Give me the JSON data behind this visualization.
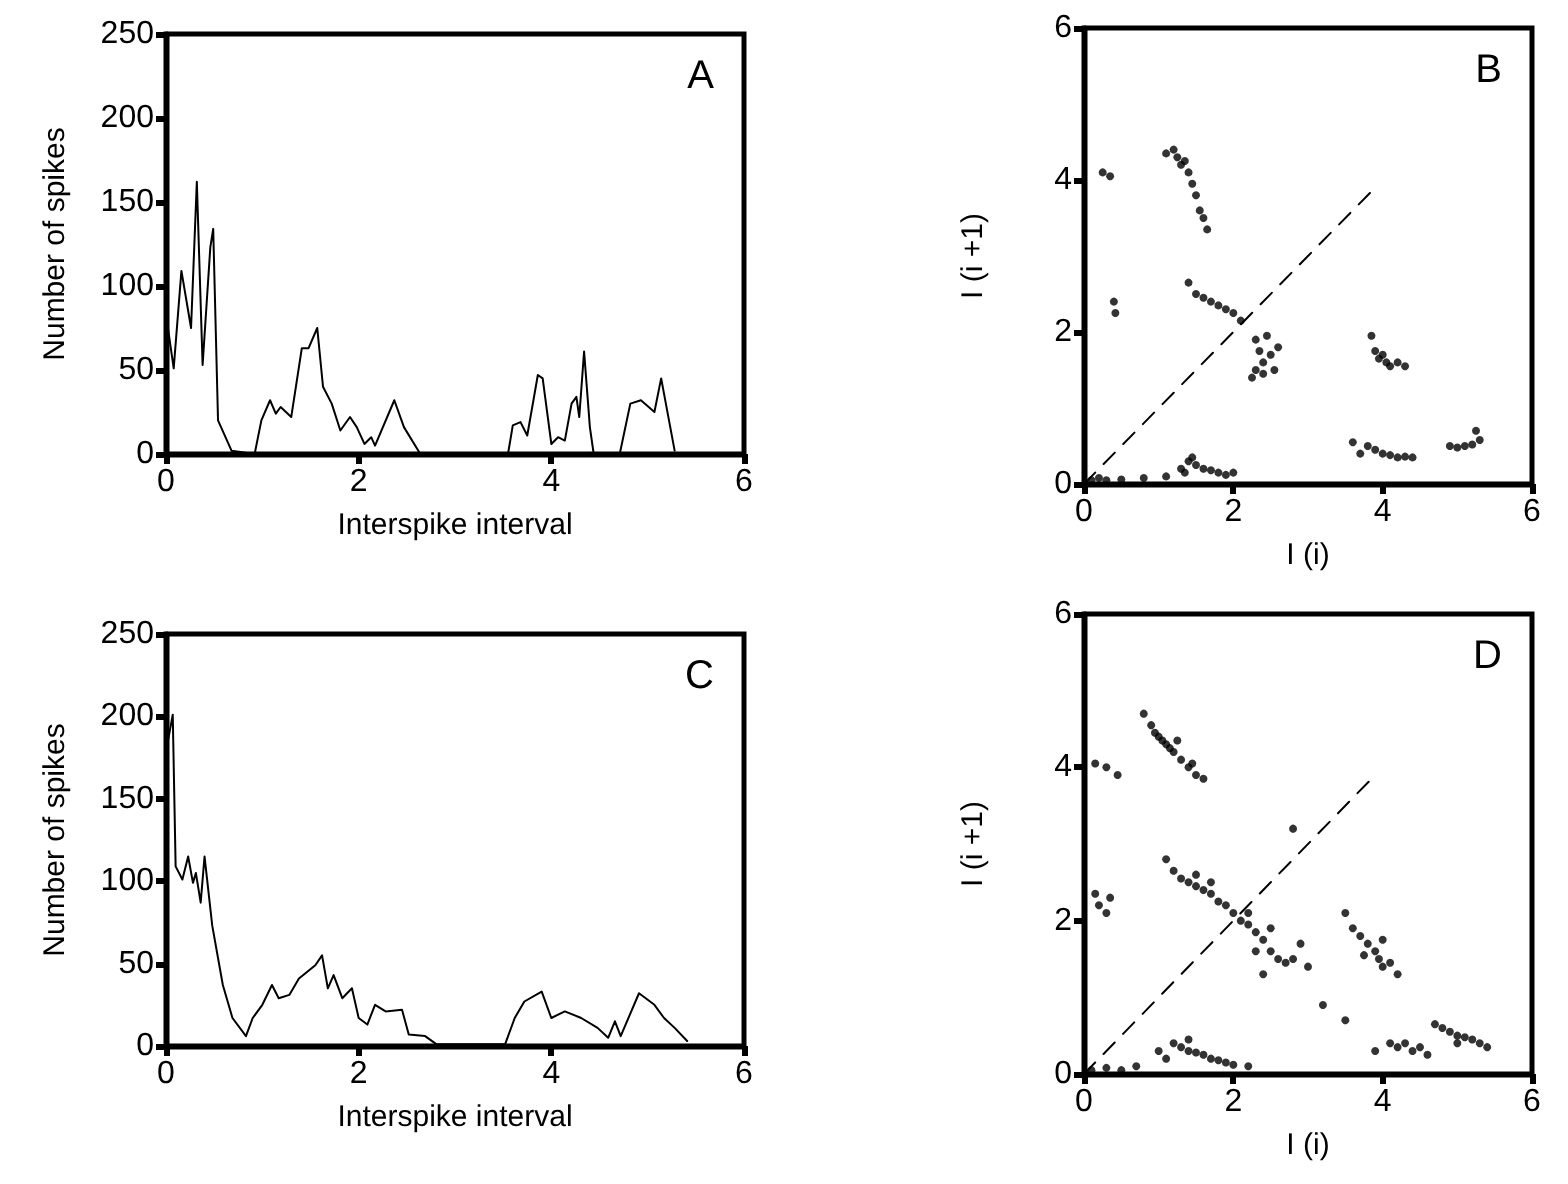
{
  "chart_data": [
    {
      "type": "line",
      "title": "A",
      "xlabel": "Interspike interval",
      "ylabel": "Number of spikes",
      "xlim": [
        0,
        6
      ],
      "ylim": [
        0,
        250
      ],
      "xticks": [
        0,
        2,
        4,
        6
      ],
      "yticks": [
        0,
        50,
        100,
        150,
        200,
        250
      ],
      "marker": "none",
      "grid": false,
      "series": [
        {
          "color": "#000000",
          "x": [
            0,
            0.08,
            0.16,
            0.26,
            0.32,
            0.38,
            0.46,
            0.49,
            0.54,
            0.68,
            0.92,
            0.99,
            1.08,
            1.14,
            1.19,
            1.3,
            1.41,
            1.48,
            1.57,
            1.63,
            1.72,
            1.81,
            1.91,
            1.98,
            2.06,
            2.13,
            2.17,
            2.37,
            2.47,
            2.64,
            3.55,
            3.6,
            3.68,
            3.75,
            3.86,
            3.91,
            4,
            4.07,
            4.14,
            4.21,
            4.26,
            4.29,
            4.34,
            4.4,
            4.44,
            4.71,
            4.82,
            4.93,
            5.07,
            5.14,
            5.28
          ],
          "values": [
            83,
            51,
            109,
            75,
            162,
            53,
            123,
            134,
            20,
            2,
            0,
            20,
            32,
            24,
            28,
            22,
            63,
            63,
            75,
            40,
            30,
            14,
            22,
            16,
            6,
            10,
            5,
            32,
            16,
            0,
            0,
            17,
            19,
            11,
            47,
            45,
            6,
            10,
            8,
            30,
            34,
            22,
            61,
            16,
            0,
            0,
            30,
            32,
            25,
            45,
            2
          ]
        }
      ]
    },
    {
      "type": "scatter",
      "title": "B",
      "xlabel": "I (i)",
      "ylabel": "I (i +1)",
      "xlim": [
        0,
        6
      ],
      "ylim": [
        0,
        6
      ],
      "xticks": [
        0,
        2,
        4,
        6
      ],
      "yticks": [
        0,
        2,
        4,
        6
      ],
      "marker": "circle",
      "grid": false,
      "series": [
        {
          "color": "#000000",
          "x": [
            1.1,
            1.2,
            1.25,
            1.3,
            1.35,
            1.4,
            1.45,
            1.5,
            1.55,
            1.6,
            1.65,
            0.25,
            0.35,
            0.4,
            0.42,
            1.4,
            1.5,
            1.6,
            1.7,
            1.8,
            1.9,
            2,
            2.1,
            2.3,
            2.35,
            2.4,
            2.3,
            2.25,
            2.5,
            2.55,
            2.45,
            2.6,
            2.4,
            3.85,
            3.9,
            4,
            4.05,
            4.1,
            4.2,
            4.3,
            3.95,
            3.6,
            3.8,
            3.9,
            4,
            4.1,
            4.2,
            4.3,
            4.4,
            3.7,
            4.9,
            5,
            5.1,
            5.2,
            5.3,
            5.25,
            0.1,
            0.2,
            0.3,
            0.5,
            0.8,
            1.1,
            1.3,
            1.4,
            1.45,
            1.5,
            1.6,
            1.7,
            1.8,
            1.9,
            2,
            1.35
          ],
          "values": [
            4.35,
            4.4,
            4.3,
            4.2,
            4.25,
            4.1,
            3.95,
            3.8,
            3.6,
            3.5,
            3.35,
            4.1,
            4.05,
            2.4,
            2.25,
            2.65,
            2.5,
            2.45,
            2.4,
            2.35,
            2.3,
            2.25,
            2.15,
            1.9,
            1.75,
            1.6,
            1.5,
            1.4,
            1.7,
            1.5,
            1.95,
            1.8,
            1.45,
            1.95,
            1.75,
            1.7,
            1.6,
            1.55,
            1.6,
            1.55,
            1.65,
            0.55,
            0.5,
            0.45,
            0.4,
            0.38,
            0.35,
            0.36,
            0.35,
            0.4,
            0.5,
            0.48,
            0.5,
            0.52,
            0.58,
            0.7,
            0.05,
            0.08,
            0.05,
            0.06,
            0.08,
            0.1,
            0.2,
            0.3,
            0.35,
            0.25,
            0.2,
            0.18,
            0.15,
            0.12,
            0.15,
            0.15
          ]
        },
        {
          "type": "line",
          "color": "#000000",
          "line_style": "dashed",
          "marker": "none",
          "x": [
            0,
            3.9
          ],
          "values": [
            0,
            3.9
          ]
        }
      ]
    },
    {
      "type": "line",
      "title": "C",
      "xlabel": "Interspike interval",
      "ylabel": "Number of spikes",
      "xlim": [
        0,
        6
      ],
      "ylim": [
        0,
        250
      ],
      "xticks": [
        0,
        2,
        4,
        6
      ],
      "yticks": [
        0,
        50,
        100,
        150,
        200,
        250
      ],
      "marker": "none",
      "grid": false,
      "series": [
        {
          "color": "#000000",
          "x": [
            0.02,
            0.07,
            0.1,
            0.17,
            0.23,
            0.28,
            0.31,
            0.36,
            0.4,
            0.48,
            0.59,
            0.69,
            0.83,
            0.9,
            1,
            1.1,
            1.17,
            1.28,
            1.38,
            1.55,
            1.62,
            1.68,
            1.74,
            1.83,
            1.93,
            2,
            2.09,
            2.17,
            2.28,
            2.45,
            2.52,
            2.69,
            2.81,
            3.52,
            3.62,
            3.72,
            3.9,
            4,
            4.14,
            4.31,
            4.48,
            4.59,
            4.66,
            4.72,
            4.91,
            5.07,
            5.17,
            5.28,
            5.41
          ],
          "values": [
            185,
            201,
            109,
            101,
            115,
            99,
            105,
            87,
            115,
            73,
            37,
            17,
            6,
            17,
            25,
            37,
            29,
            31,
            41,
            49,
            55,
            35,
            43,
            29,
            35,
            17,
            13,
            25,
            21,
            22,
            7,
            6,
            1,
            1,
            17,
            27,
            33,
            17,
            21,
            17,
            11,
            5,
            15,
            6,
            32,
            25,
            17,
            11,
            3
          ]
        }
      ]
    },
    {
      "type": "scatter",
      "title": "D",
      "xlabel": "I (i)",
      "ylabel": "I (i +1)",
      "xlim": [
        0,
        6
      ],
      "ylim": [
        0,
        6
      ],
      "xticks": [
        0,
        2,
        4,
        6
      ],
      "yticks": [
        0,
        2,
        4,
        6
      ],
      "marker": "circle",
      "grid": false,
      "series": [
        {
          "color": "#000000",
          "x": [
            0.8,
            0.9,
            1,
            1.05,
            1.1,
            1.15,
            1.2,
            1.3,
            1.4,
            1.5,
            1.6,
            0.95,
            1.25,
            1.45,
            0.15,
            0.3,
            0.45,
            0.2,
            0.3,
            0.35,
            0.15,
            1.1,
            1.2,
            1.3,
            1.4,
            1.5,
            1.6,
            1.7,
            1.8,
            1.9,
            2,
            2.1,
            2.2,
            2.3,
            2.4,
            2.5,
            2.6,
            2.7,
            2.8,
            2.4,
            2.3,
            2.5,
            1.5,
            1.7,
            2.2,
            2.9,
            3,
            3.5,
            3.6,
            3.7,
            3.8,
            3.9,
            3.95,
            4,
            4.1,
            4.2,
            3.75,
            4,
            4.1,
            4.2,
            4.3,
            4.4,
            4.5,
            4.6,
            3.9,
            4.7,
            4.8,
            4.9,
            5,
            5.1,
            5.2,
            5.3,
            5.4,
            5,
            0.1,
            0.3,
            0.5,
            0.7,
            1,
            1.2,
            1.3,
            1.4,
            1.5,
            1.6,
            1.7,
            1.8,
            1.9,
            2,
            2.2,
            1.4,
            1.1,
            2.8,
            3.5,
            3.2
          ],
          "values": [
            4.7,
            4.55,
            4.4,
            4.35,
            4.3,
            4.25,
            4.2,
            4.1,
            4,
            3.9,
            3.85,
            4.45,
            4.35,
            4.05,
            4.05,
            4,
            3.9,
            2.2,
            2.1,
            2.3,
            2.35,
            2.8,
            2.65,
            2.55,
            2.5,
            2.45,
            2.4,
            2.35,
            2.25,
            2.2,
            2.1,
            2,
            1.95,
            1.85,
            1.75,
            1.6,
            1.5,
            1.45,
            1.5,
            1.3,
            1.6,
            1.9,
            2.6,
            2.5,
            2.1,
            1.7,
            1.4,
            2.1,
            1.9,
            1.8,
            1.7,
            1.6,
            1.5,
            1.4,
            1.45,
            1.3,
            1.55,
            1.75,
            0.4,
            0.35,
            0.4,
            0.3,
            0.35,
            0.25,
            0.3,
            0.65,
            0.6,
            0.55,
            0.5,
            0.48,
            0.45,
            0.4,
            0.35,
            0.4,
            0.05,
            0.08,
            0.05,
            0.1,
            0.3,
            0.4,
            0.35,
            0.3,
            0.28,
            0.25,
            0.2,
            0.18,
            0.15,
            0.12,
            0.1,
            0.45,
            0.2,
            3.2,
            0.7,
            0.9
          ]
        },
        {
          "type": "line",
          "color": "#000000",
          "line_style": "dashed",
          "marker": "none",
          "x": [
            0,
            3.9
          ],
          "values": [
            0,
            3.9
          ]
        }
      ]
    }
  ]
}
